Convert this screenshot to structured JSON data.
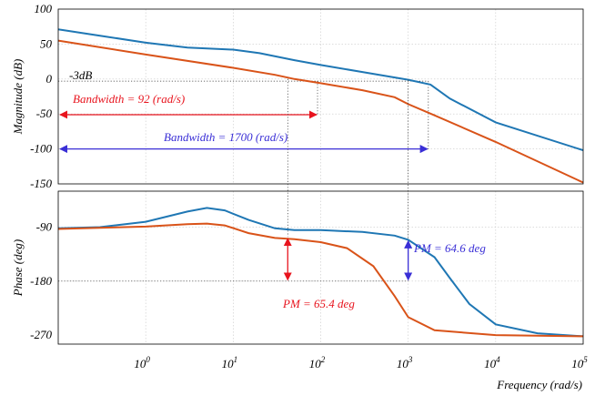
{
  "chart_data": [
    {
      "type": "line",
      "panel": "magnitude",
      "xlabel": "",
      "ylabel": "Magnitude (dB)",
      "xscale": "log",
      "xlim": [
        0.1,
        100000
      ],
      "ylim": [
        -150,
        100
      ],
      "y_ticks": [
        "100",
        "50",
        "0",
        "-50",
        "-100",
        "-150"
      ],
      "grid": true,
      "series": [
        {
          "color": "#1f77b4",
          "points": [
            [
              0.1,
              71
            ],
            [
              0.3,
              62
            ],
            [
              1,
              52
            ],
            [
              3,
              45
            ],
            [
              10,
              42
            ],
            [
              20,
              37
            ],
            [
              50,
              27
            ],
            [
              100,
              20
            ],
            [
              300,
              10
            ],
            [
              1000,
              -1
            ],
            [
              1800,
              -8
            ],
            [
              3000,
              -28
            ],
            [
              10000,
              -62
            ],
            [
              100000,
              -102
            ]
          ]
        },
        {
          "color": "#d95319",
          "points": [
            [
              0.1,
              55
            ],
            [
              1,
              35
            ],
            [
              10,
              16
            ],
            [
              30,
              6
            ],
            [
              50,
              0
            ],
            [
              100,
              -6
            ],
            [
              300,
              -16
            ],
            [
              700,
              -26
            ],
            [
              1000,
              -36
            ],
            [
              2000,
              -52
            ],
            [
              10000,
              -90
            ],
            [
              100000,
              -148
            ]
          ]
        }
      ],
      "annotations": [
        {
          "text": "-3dB",
          "color": "#000000"
        },
        {
          "text": "Bandwidth = 92 (rad/s)",
          "color": "#e8141e"
        },
        {
          "text": "Bandwidth = 1700 (rad/s)",
          "color": "#3a2fd6"
        }
      ]
    },
    {
      "type": "line",
      "panel": "phase",
      "xlabel": "Frequency (rad/s)",
      "ylabel": "Phase (deg)",
      "xscale": "log",
      "xlim": [
        0.1,
        100000
      ],
      "ylim": [
        -285,
        -30
      ],
      "x_ticks": [
        {
          "base": "10",
          "exp": "0"
        },
        {
          "base": "10",
          "exp": "1"
        },
        {
          "base": "10",
          "exp": "2"
        },
        {
          "base": "10",
          "exp": "3"
        },
        {
          "base": "10",
          "exp": "4"
        },
        {
          "base": "10",
          "exp": "5"
        }
      ],
      "y_ticks": [
        "-90",
        "-180",
        "-270"
      ],
      "grid": true,
      "series": [
        {
          "color": "#1f77b4",
          "points": [
            [
              0.1,
              -92
            ],
            [
              0.3,
              -90
            ],
            [
              1,
              -81
            ],
            [
              3,
              -64
            ],
            [
              5,
              -58
            ],
            [
              8,
              -62
            ],
            [
              15,
              -78
            ],
            [
              30,
              -92
            ],
            [
              50,
              -95
            ],
            [
              100,
              -95
            ],
            [
              300,
              -98
            ],
            [
              700,
              -104
            ],
            [
              1000,
              -111
            ],
            [
              2000,
              -140
            ],
            [
              3000,
              -175
            ],
            [
              5000,
              -218
            ],
            [
              10000,
              -252
            ],
            [
              30000,
              -267
            ],
            [
              100000,
              -272
            ]
          ]
        },
        {
          "color": "#d95319",
          "points": [
            [
              0.1,
              -93
            ],
            [
              1,
              -89
            ],
            [
              3,
              -85
            ],
            [
              5,
              -84
            ],
            [
              8,
              -87
            ],
            [
              15,
              -100
            ],
            [
              30,
              -108
            ],
            [
              50,
              -110
            ],
            [
              100,
              -115
            ],
            [
              200,
              -125
            ],
            [
              400,
              -155
            ],
            [
              700,
              -205
            ],
            [
              1000,
              -240
            ],
            [
              2000,
              -262
            ],
            [
              10000,
              -270
            ],
            [
              100000,
              -272
            ]
          ]
        }
      ],
      "annotations": [
        {
          "text": "PM = 64.6 deg",
          "color": "#3a2fd6"
        },
        {
          "text": "PM = 65.4 deg",
          "color": "#e8141e"
        }
      ]
    }
  ]
}
